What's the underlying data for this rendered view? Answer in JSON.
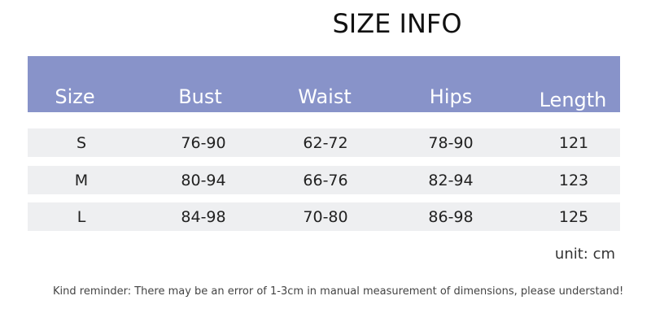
{
  "title": "SIZE INFO",
  "header_color": "#8893c9",
  "columns": [
    "Size",
    "Bust",
    "Waist",
    "Hips",
    "Length"
  ],
  "rows": [
    [
      "S",
      "76-90",
      "62-72",
      "78-90",
      "121"
    ],
    [
      "M",
      "80-94",
      "66-76",
      "82-94",
      "123"
    ],
    [
      "L",
      "84-98",
      "70-80",
      "86-98",
      "125"
    ]
  ],
  "unit": "unit:  cm",
  "note": "Kind reminder: There may be an error of 1-3cm in manual measurement of dimensions, please understand!"
}
